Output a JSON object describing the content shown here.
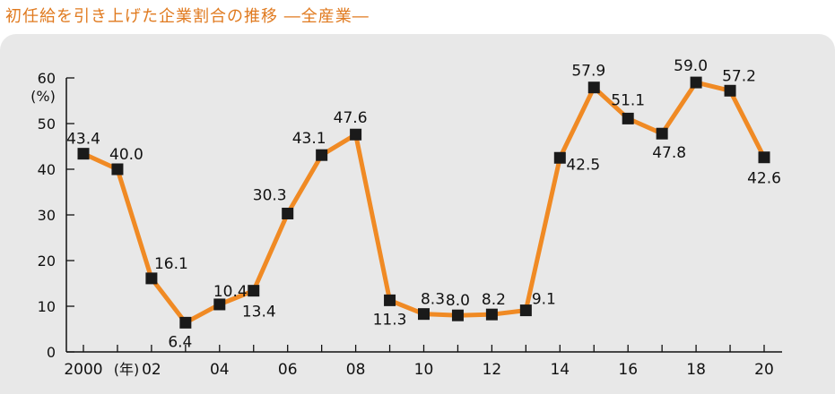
{
  "title": "初任給を引き上げた企業割合の推移 ―全産業―",
  "accent_color": "#f08a24",
  "marker_color": "#1a1a1a",
  "chart_data": {
    "type": "line",
    "title": "初任給を引き上げた企業割合の推移 ―全産業―",
    "ylabel": "(%)",
    "xlabel": "(年)",
    "ylim": [
      0,
      60
    ],
    "yticks": [
      0,
      10,
      20,
      30,
      40,
      50,
      60
    ],
    "grid": false,
    "x": [
      2000,
      2001,
      2002,
      2003,
      2004,
      2005,
      2006,
      2007,
      2008,
      2009,
      2010,
      2011,
      2012,
      2013,
      2014,
      2015,
      2016,
      2017,
      2018,
      2019,
      2020
    ],
    "x_tick_labels": [
      {
        "x": 2000,
        "label": "2000"
      },
      {
        "x": 2002,
        "label": "02"
      },
      {
        "x": 2004,
        "label": "04"
      },
      {
        "x": 2006,
        "label": "06"
      },
      {
        "x": 2008,
        "label": "08"
      },
      {
        "x": 2010,
        "label": "10"
      },
      {
        "x": 2012,
        "label": "12"
      },
      {
        "x": 2014,
        "label": "14"
      },
      {
        "x": 2016,
        "label": "16"
      },
      {
        "x": 2018,
        "label": "18"
      },
      {
        "x": 2020,
        "label": "20"
      }
    ],
    "series": [
      {
        "values": [
          43.4,
          40.0,
          16.1,
          6.4,
          10.4,
          13.4,
          30.3,
          43.1,
          47.6,
          11.3,
          8.3,
          8.0,
          8.2,
          9.1,
          42.5,
          57.9,
          51.1,
          47.8,
          59.0,
          57.2,
          42.6
        ],
        "labels": [
          "43.4",
          "40.0",
          "16.1",
          "6.4",
          "10.4",
          "13.4",
          "30.3",
          "43.1",
          "47.6",
          "11.3",
          "8.3",
          "8.0",
          "8.2",
          "9.1",
          "42.5",
          "57.9",
          "51.1",
          "47.8",
          "59.0",
          "57.2",
          "42.6"
        ]
      }
    ]
  }
}
